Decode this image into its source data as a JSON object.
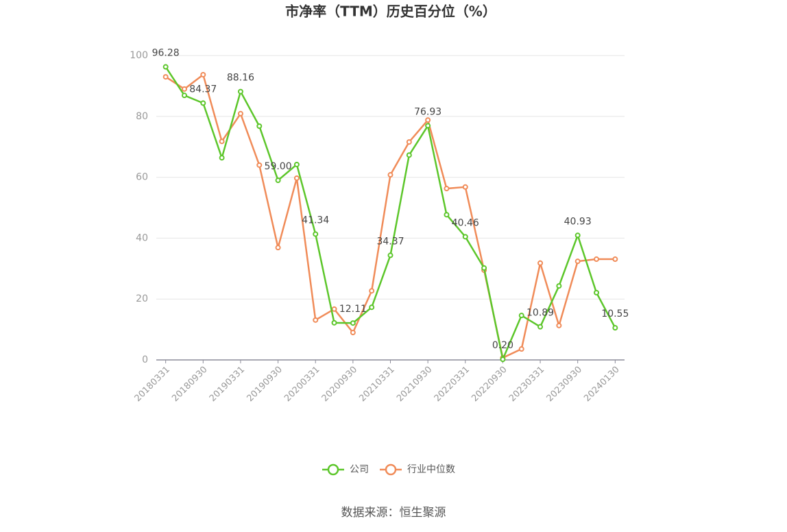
{
  "chart_data": {
    "type": "line",
    "title": "市净率（TTM）历史百分位（%）",
    "categories": [
      "20180331",
      null,
      "20180930",
      null,
      "20190331",
      null,
      "20190930",
      null,
      "20200331",
      null,
      "20200930",
      null,
      "20210331",
      null,
      "20210930",
      null,
      "20220331",
      null,
      "20220930",
      null,
      "20230331",
      null,
      "20230930",
      null,
      "20240130"
    ],
    "series": [
      {
        "name": "公司",
        "color": "#5cc62a",
        "values": [
          96.28,
          86.9,
          84.37,
          66.4,
          88.16,
          76.8,
          59.0,
          64.2,
          41.34,
          12.2,
          12.11,
          17.3,
          34.37,
          67.3,
          76.93,
          47.7,
          40.46,
          30.2,
          0.2,
          14.6,
          10.89,
          24.3,
          40.93,
          22.1,
          10.55
        ],
        "value_labels": [
          "96.28",
          null,
          "84.37",
          null,
          "88.16",
          null,
          "59.00",
          null,
          "41.34",
          null,
          "12.11",
          null,
          "34.37",
          null,
          "76.93",
          null,
          "40.46",
          null,
          "0.20",
          null,
          "10.89",
          null,
          "40.93",
          null,
          "10.55"
        ]
      },
      {
        "name": "行业中位数",
        "color": "#f08b58",
        "values": [
          93.0,
          89.0,
          93.7,
          71.8,
          80.9,
          64.0,
          36.9,
          59.7,
          13.1,
          16.7,
          9.0,
          22.7,
          60.8,
          71.6,
          78.8,
          56.3,
          56.8,
          29.5,
          0.7,
          3.6,
          31.8,
          11.3,
          32.4,
          33.1,
          33.1
        ]
      }
    ],
    "ylim": [
      0,
      100
    ],
    "yticks": [
      0,
      20,
      40,
      60,
      80,
      100
    ],
    "grid": true,
    "legend": "bottom",
    "source": "数据来源：恒生聚源"
  }
}
